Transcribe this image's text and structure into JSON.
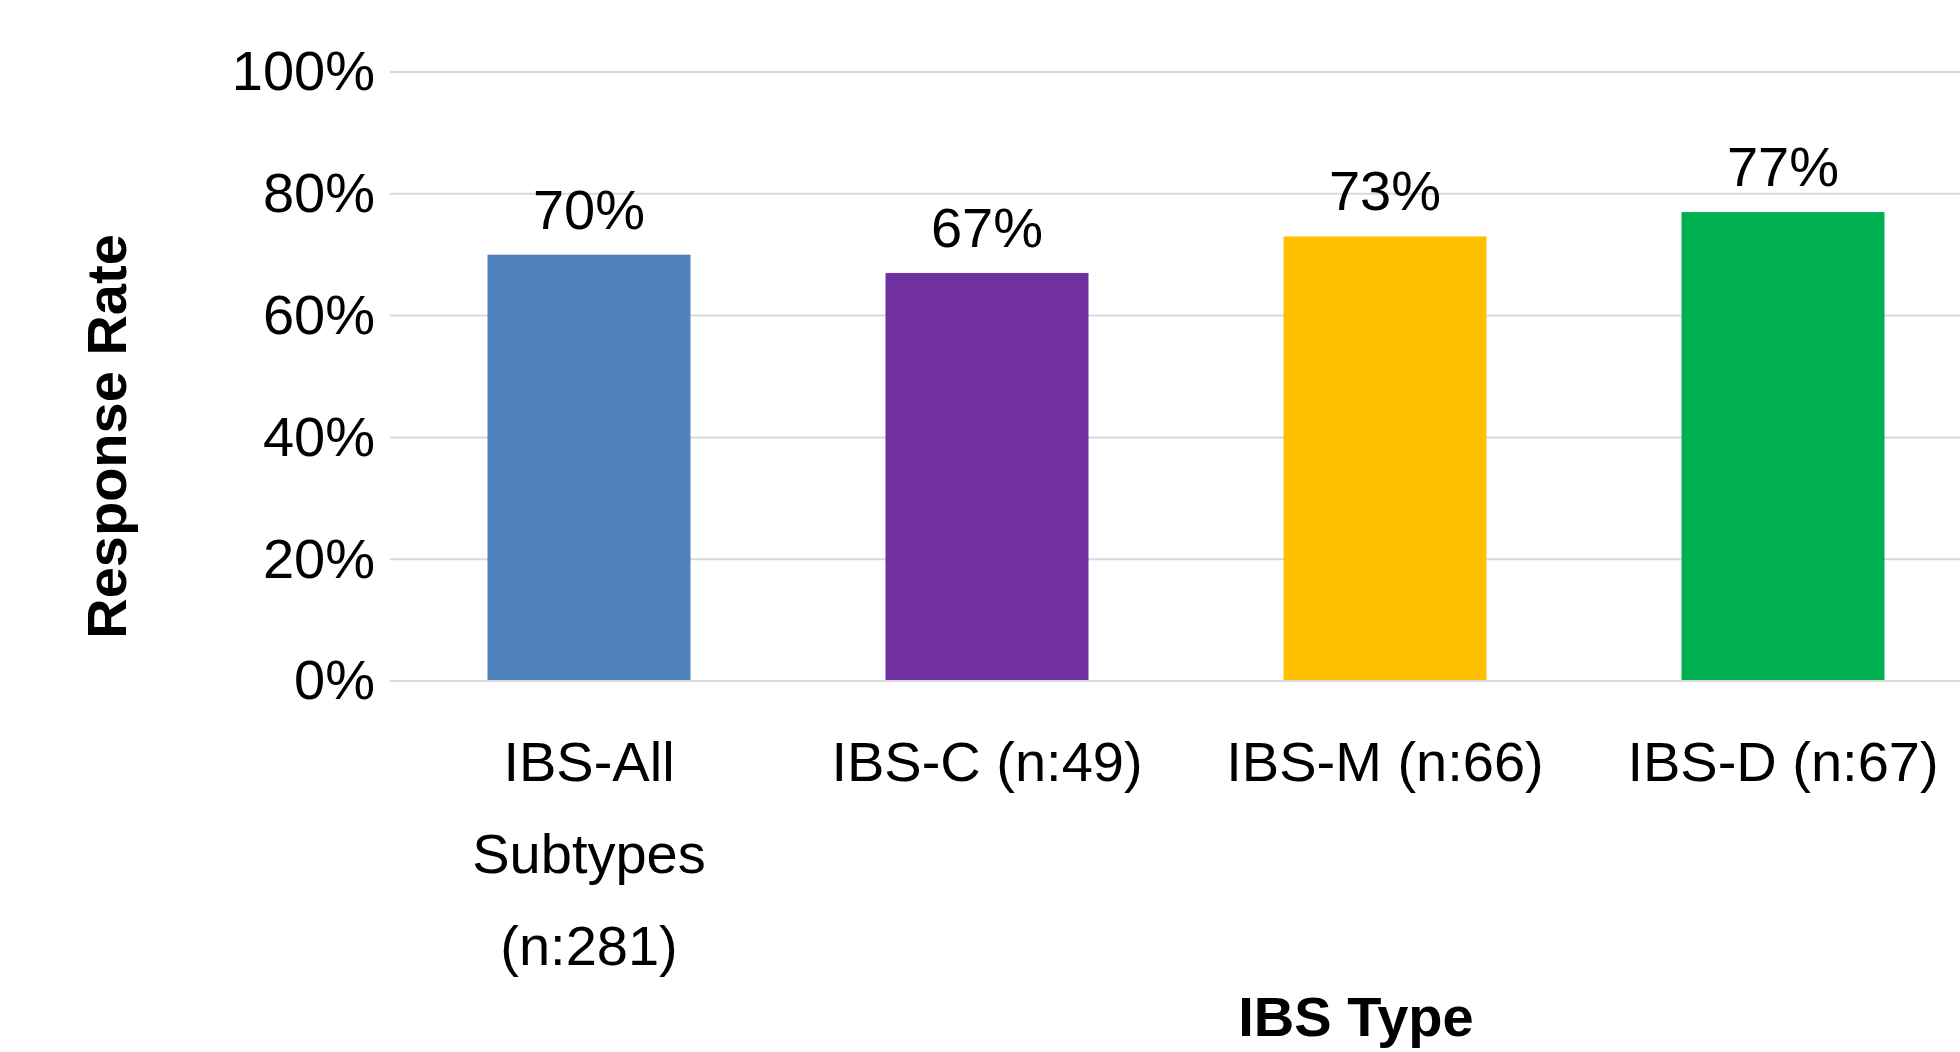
{
  "chart_data": {
    "type": "bar",
    "xlabel": "IBS Type",
    "ylabel": "Response Rate",
    "categories": [
      "IBS-All Subtypes (n:281)",
      "IBS-C (n:49)",
      "IBS-M (n:66)",
      "IBS-D (n:67)"
    ],
    "values": [
      70,
      67,
      73,
      77
    ],
    "colors": [
      "#4f81bd",
      "#7030a0",
      "#ffc000",
      "#00b050"
    ],
    "value_labels": [
      "70%",
      "67%",
      "73%",
      "77%"
    ],
    "ylim": [
      0,
      100
    ],
    "yticks": [
      {
        "value": 0,
        "label": "0%"
      },
      {
        "value": 20,
        "label": "20%"
      },
      {
        "value": 40,
        "label": "40%"
      },
      {
        "value": 60,
        "label": "60%"
      },
      {
        "value": 80,
        "label": "80%"
      },
      {
        "value": 100,
        "label": "100%"
      }
    ],
    "grid": "y"
  }
}
